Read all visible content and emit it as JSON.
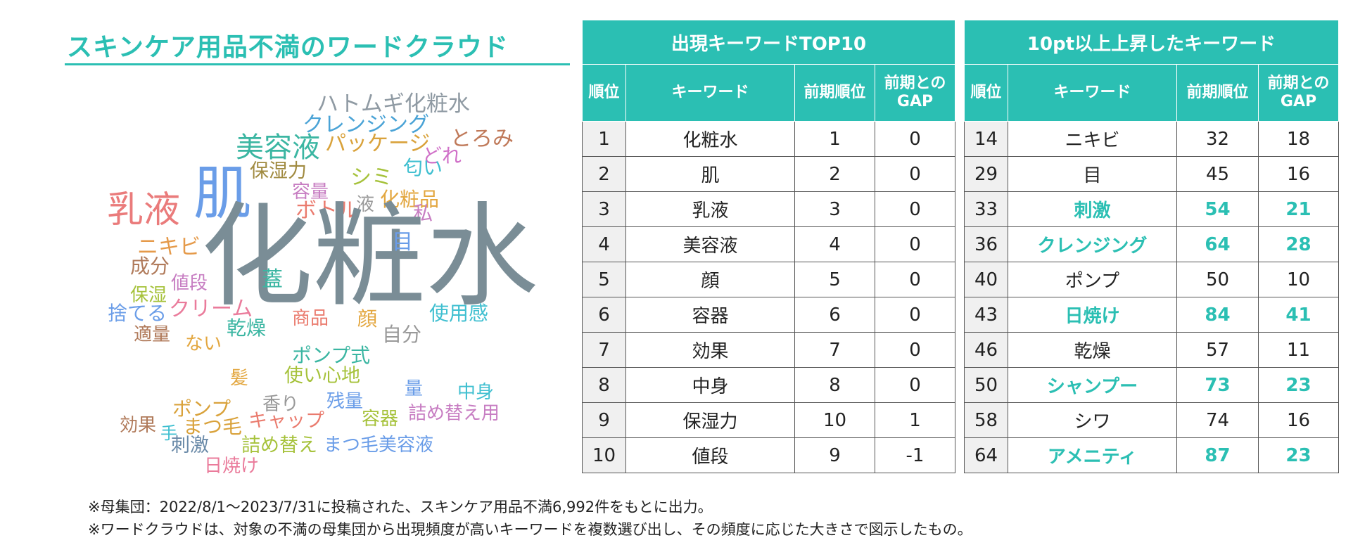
{
  "wordcloud": {
    "title": "スキンケア用品不満のワードクラウド",
    "words": [
      {
        "text": "ハトムギ化粧水",
        "color": "#8f9aa3"
      },
      {
        "text": "クレンジング",
        "color": "#4aa3d6"
      },
      {
        "text": "美容液",
        "color": "#3bb6a2"
      },
      {
        "text": "パッケージ",
        "color": "#d9a23b"
      },
      {
        "text": "とろみ",
        "color": "#c07a5a"
      },
      {
        "text": "どれ",
        "color": "#d070c8"
      },
      {
        "text": "保湿力",
        "color": "#a08a40"
      },
      {
        "text": "匂い",
        "color": "#3fbfd0"
      },
      {
        "text": "シミ",
        "color": "#a6c23b"
      },
      {
        "text": "容量",
        "color": "#c77dc2"
      },
      {
        "text": "肌",
        "color": "#6a9de8"
      },
      {
        "text": "乳液",
        "color": "#ea7b7b"
      },
      {
        "text": "化粧品",
        "color": "#e3a740"
      },
      {
        "text": "ボトル",
        "color": "#ea7b6e"
      },
      {
        "text": "液",
        "color": "#999999"
      },
      {
        "text": "私",
        "color": "#c77dc2"
      },
      {
        "text": "ニキビ",
        "color": "#e59a4a"
      },
      {
        "text": "化粧水",
        "color": "#7a8d96"
      },
      {
        "text": "目",
        "color": "#6a9de8"
      },
      {
        "text": "成分",
        "color": "#b07a5a"
      },
      {
        "text": "蓋",
        "color": "#3bb6a2"
      },
      {
        "text": "値段",
        "color": "#c77dc2"
      },
      {
        "text": "保湿",
        "color": "#a6c23b"
      },
      {
        "text": "捨てる",
        "color": "#6a9de8"
      },
      {
        "text": "クリーム",
        "color": "#ea7b9b"
      },
      {
        "text": "商品",
        "color": "#ea7b6e"
      },
      {
        "text": "顔",
        "color": "#e3a740"
      },
      {
        "text": "使用感",
        "color": "#3fbfd0"
      },
      {
        "text": "適量",
        "color": "#b07a5a"
      },
      {
        "text": "乾燥",
        "color": "#3bb6a2"
      },
      {
        "text": "自分",
        "color": "#999999"
      },
      {
        "text": "ない",
        "color": "#e3a740"
      },
      {
        "text": "ポンプ式",
        "color": "#3bb6a2"
      },
      {
        "text": "使い心地",
        "color": "#a6c23b"
      },
      {
        "text": "髪",
        "color": "#e3a740"
      },
      {
        "text": "量",
        "color": "#6a9de8"
      },
      {
        "text": "中身",
        "color": "#3fbfd0"
      },
      {
        "text": "残量",
        "color": "#6a9de8"
      },
      {
        "text": "香り",
        "color": "#999999"
      },
      {
        "text": "ポンプ",
        "color": "#d9a23b"
      },
      {
        "text": "容器",
        "color": "#a6c23b"
      },
      {
        "text": "詰め替え用",
        "color": "#c77dc2"
      },
      {
        "text": "効果",
        "color": "#b07a5a"
      },
      {
        "text": "手",
        "color": "#3fbfd0"
      },
      {
        "text": "まつ毛",
        "color": "#d9a23b"
      },
      {
        "text": "キャップ",
        "color": "#ea7b6e"
      },
      {
        "text": "刺激",
        "color": "#6a8aa8"
      },
      {
        "text": "詰め替え",
        "color": "#a6c23b"
      },
      {
        "text": "まつ毛美容液",
        "color": "#6a9de8"
      },
      {
        "text": "日焼け",
        "color": "#ea7b9b"
      }
    ]
  },
  "top10": {
    "title": "出現キーワードTOP10",
    "headers": [
      "順位",
      "キーワード",
      "前期順位",
      "前期との\nGAP"
    ],
    "rows": [
      {
        "rank": "1",
        "keyword": "化粧水",
        "prev": "1",
        "gap": "0"
      },
      {
        "rank": "2",
        "keyword": "肌",
        "prev": "2",
        "gap": "0"
      },
      {
        "rank": "3",
        "keyword": "乳液",
        "prev": "3",
        "gap": "0"
      },
      {
        "rank": "4",
        "keyword": "美容液",
        "prev": "4",
        "gap": "0"
      },
      {
        "rank": "5",
        "keyword": "顔",
        "prev": "5",
        "gap": "0"
      },
      {
        "rank": "6",
        "keyword": "容器",
        "prev": "6",
        "gap": "0"
      },
      {
        "rank": "7",
        "keyword": "効果",
        "prev": "7",
        "gap": "0"
      },
      {
        "rank": "8",
        "keyword": "中身",
        "prev": "8",
        "gap": "0"
      },
      {
        "rank": "9",
        "keyword": "保湿力",
        "prev": "10",
        "gap": "1"
      },
      {
        "rank": "10",
        "keyword": "値段",
        "prev": "9",
        "gap": "-1"
      }
    ]
  },
  "rising": {
    "title": "10pt以上上昇したキーワード",
    "headers": [
      "順位",
      "キーワード",
      "前期順位",
      "前期との\nGAP"
    ],
    "highlight_color": "#2bbfb3",
    "rows": [
      {
        "rank": "14",
        "keyword": "ニキビ",
        "prev": "32",
        "gap": "18",
        "hl": false
      },
      {
        "rank": "29",
        "keyword": "目",
        "prev": "45",
        "gap": "16",
        "hl": false
      },
      {
        "rank": "33",
        "keyword": "刺激",
        "prev": "54",
        "gap": "21",
        "hl": true
      },
      {
        "rank": "36",
        "keyword": "クレンジング",
        "prev": "64",
        "gap": "28",
        "hl": true
      },
      {
        "rank": "40",
        "keyword": "ポンプ",
        "prev": "50",
        "gap": "10",
        "hl": false
      },
      {
        "rank": "43",
        "keyword": "日焼け",
        "prev": "84",
        "gap": "41",
        "hl": true
      },
      {
        "rank": "46",
        "keyword": "乾燥",
        "prev": "57",
        "gap": "11",
        "hl": false
      },
      {
        "rank": "50",
        "keyword": "シャンプー",
        "prev": "73",
        "gap": "23",
        "hl": true
      },
      {
        "rank": "58",
        "keyword": "シワ",
        "prev": "74",
        "gap": "16",
        "hl": false
      },
      {
        "rank": "64",
        "keyword": "アメニティ",
        "prev": "87",
        "gap": "23",
        "hl": true
      }
    ]
  },
  "notes": [
    "※母集団：2022/8/1～2023/7/31に投稿された、スキンケア用品不満6,992件をもとに出力。",
    "※ワードクラウドは、対象の不満の母集団から出現頻度が高いキーワードを複数選び出し、その頻度に応じた大きさで図示したもの。"
  ]
}
